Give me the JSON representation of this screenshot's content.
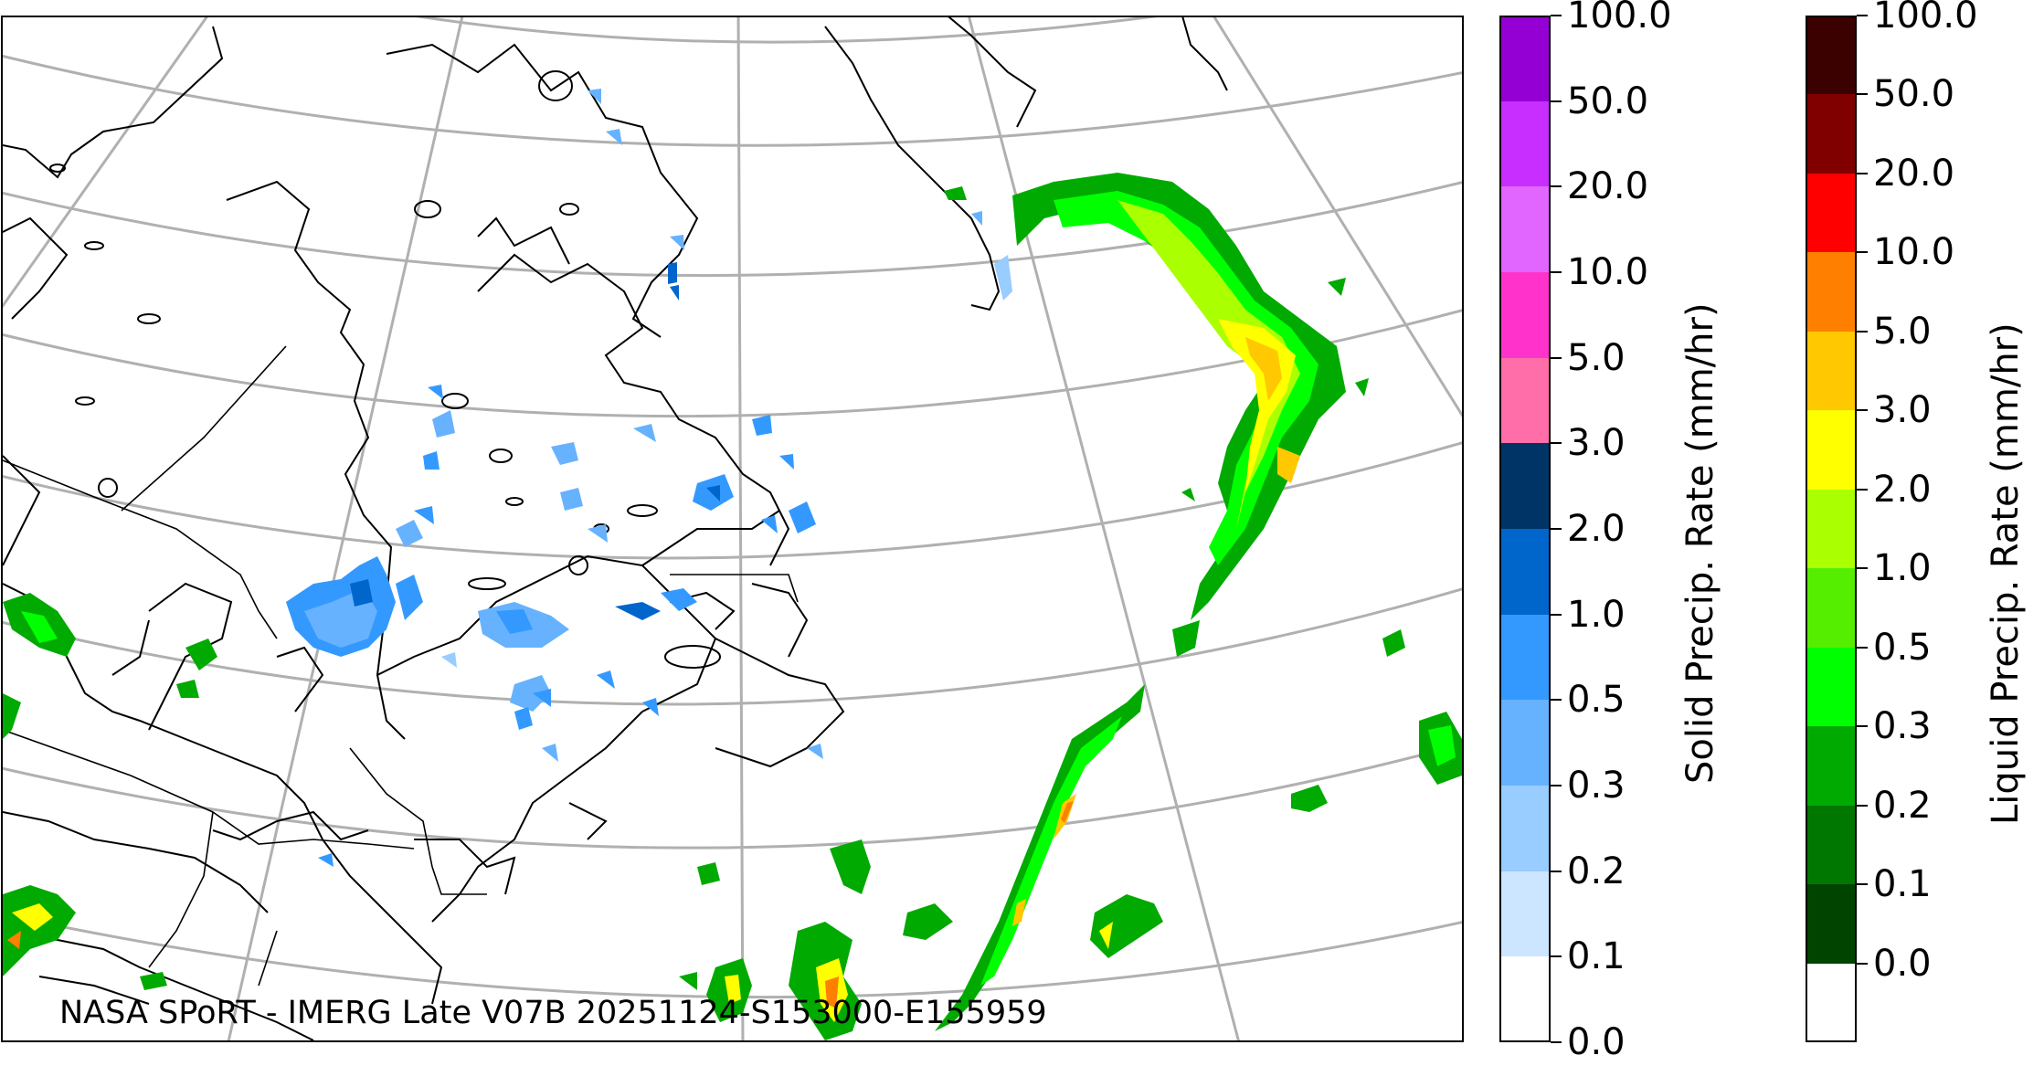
{
  "credit": "NASA SPoRT - IMERG Late V07B 20251124-S153000-E155959",
  "colorbars": [
    {
      "title": "Solid Precip. Rate (mm/hr)",
      "ticks": [
        "100.0",
        "50.0",
        "20.0",
        "10.0",
        "5.0",
        "3.0",
        "2.0",
        "1.0",
        "0.5",
        "0.3",
        "0.2",
        "0.1",
        "0.0"
      ],
      "colors": [
        "#9400d3",
        "#c82eff",
        "#e066ff",
        "#ff33cc",
        "#ff6ea8",
        "#003366",
        "#0066cc",
        "#3399ff",
        "#66b2ff",
        "#99ccff",
        "#cce6ff",
        "#ffffff"
      ]
    },
    {
      "title": "Liquid Precip. Rate (mm/hr)",
      "ticks": [
        "100.0",
        "50.0",
        "20.0",
        "10.0",
        "5.0",
        "3.0",
        "2.0",
        "1.0",
        "0.5",
        "0.3",
        "0.2",
        "0.1",
        "0.0"
      ],
      "colors": [
        "#3b0000",
        "#800000",
        "#ff0000",
        "#ff8000",
        "#ffc800",
        "#ffff00",
        "#aaff00",
        "#55ee00",
        "#00ff00",
        "#00aa00",
        "#007700",
        "#004400",
        "#ffffff"
      ]
    }
  ],
  "map": {
    "projection": "Lambert conformal over eastern North America and North Atlantic",
    "gridline_color": "#b0b0b0",
    "coast_color": "#000000"
  }
}
